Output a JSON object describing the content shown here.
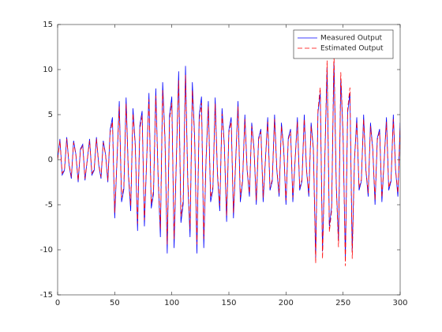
{
  "chart_data": {
    "type": "line",
    "x": [
      0,
      2,
      4,
      6,
      8,
      10,
      12,
      14,
      16,
      18,
      20,
      22,
      24,
      26,
      28,
      30,
      32,
      34,
      36,
      38,
      40,
      42,
      44,
      46,
      48,
      50,
      52,
      54,
      56,
      58,
      60,
      62,
      64,
      66,
      68,
      70,
      72,
      74,
      76,
      78,
      80,
      82,
      84,
      86,
      88,
      90,
      92,
      94,
      96,
      98,
      100,
      102,
      104,
      106,
      108,
      110,
      112,
      114,
      116,
      118,
      120,
      122,
      124,
      126,
      128,
      130,
      132,
      134,
      136,
      138,
      140,
      142,
      144,
      146,
      148,
      150,
      152,
      154,
      156,
      158,
      160,
      162,
      164,
      166,
      168,
      170,
      172,
      174,
      176,
      178,
      180,
      182,
      184,
      186,
      188,
      190,
      192,
      194,
      196,
      198,
      200,
      202,
      204,
      206,
      208,
      210,
      212,
      214,
      216,
      218,
      220,
      222,
      224,
      226,
      228,
      230,
      232,
      234,
      236,
      238,
      240,
      242,
      244,
      246,
      248,
      250,
      252,
      254,
      256,
      258,
      260,
      262,
      264,
      266,
      268,
      270,
      272,
      274,
      276,
      278,
      280,
      282,
      284,
      286,
      288,
      290,
      292,
      294,
      296,
      298,
      300
    ],
    "series": [
      {
        "name": "Measured Output",
        "color": "#0000ff",
        "dash": false,
        "values": [
          0,
          2.3,
          -1.7,
          -1.2,
          2.5,
          -0.6,
          -2.1,
          2.1,
          0.6,
          -2.5,
          1.2,
          1.7,
          -2.3,
          0,
          2.3,
          -1.7,
          -1.2,
          2.5,
          -0.6,
          -2.1,
          2.1,
          0.6,
          -2.5,
          3.3,
          4.7,
          -6.5,
          0,
          6.5,
          -4.7,
          -3.3,
          6.9,
          -1.7,
          -5.7,
          5.7,
          1.7,
          -7.9,
          3.8,
          5.4,
          -7.4,
          0,
          7.4,
          -5.4,
          -3.8,
          7.9,
          -1.9,
          -8.6,
          8.6,
          2.5,
          -10.4,
          4.9,
          7,
          -9.8,
          0,
          9.8,
          -7,
          -4.9,
          10.4,
          -2.5,
          -8.6,
          8.6,
          2.5,
          -10.4,
          4.9,
          7,
          -9.8,
          0,
          6.5,
          -4.7,
          -3.3,
          6.9,
          -1.7,
          -5.7,
          5.7,
          1.7,
          -6.9,
          3.3,
          4.7,
          -6.5,
          0,
          6.5,
          -4.7,
          -2.4,
          5,
          -1.2,
          -4.1,
          4.1,
          1.2,
          -5,
          2.4,
          3.4,
          -4.7,
          0,
          4.7,
          -3.4,
          -2.4,
          5,
          -1.2,
          -4.1,
          4.1,
          1.2,
          -5,
          2.4,
          3.4,
          -4.7,
          0,
          4.7,
          -3.4,
          -2.4,
          5,
          -1.2,
          -4.1,
          4.1,
          1.2,
          -10.9,
          5.2,
          7.4,
          -10.2,
          0,
          10.2,
          -7.4,
          -5.2,
          10.9,
          -2.6,
          -9,
          9,
          2.6,
          -10.9,
          5.2,
          7.4,
          -10.2,
          0,
          4.7,
          -3.4,
          -2.4,
          5,
          -1.2,
          -4.1,
          4.1,
          1.2,
          -5,
          2.4,
          3.4,
          -4.7,
          0,
          4.7,
          -3.4,
          -2.4,
          5,
          -1.2,
          -4.1,
          4.1
        ]
      },
      {
        "name": "Estimated Output",
        "color": "#ff0000",
        "dash": true,
        "values": [
          0,
          2.1,
          -1.5,
          -1.1,
          2.3,
          -0.5,
          -1.9,
          1.9,
          0.5,
          -2.3,
          1.1,
          1.5,
          -2.1,
          0,
          2.1,
          -1.5,
          -1.1,
          2.3,
          -0.5,
          -1.9,
          1.9,
          0.5,
          -2.3,
          3,
          4.2,
          -5.9,
          0,
          5.9,
          -4.2,
          -3,
          6.2,
          -1.5,
          -5.1,
          5.1,
          1.5,
          -7.1,
          3.4,
          4.9,
          -6.7,
          0,
          6.7,
          -4.9,
          -3.4,
          7.1,
          -1.7,
          -7.7,
          7.7,
          2.3,
          -9.4,
          4.4,
          6.3,
          -8.8,
          0,
          8.8,
          -6.3,
          -4.4,
          9.4,
          -2.3,
          -7.7,
          7.7,
          2.3,
          -9.4,
          4.4,
          6.3,
          -8.8,
          0,
          5.9,
          -4.2,
          -3,
          6.2,
          -1.5,
          -5.1,
          5.1,
          1.5,
          -6.2,
          3,
          4.2,
          -5.9,
          0,
          5.9,
          -4.2,
          -2.2,
          4.5,
          -1.1,
          -3.7,
          3.7,
          1.1,
          -4.5,
          2.2,
          3.1,
          -4.2,
          0,
          4.2,
          -3.1,
          -2.2,
          4.5,
          -1.1,
          -3.7,
          3.7,
          1.1,
          -4.5,
          2.2,
          3.1,
          -4.2,
          0,
          4.2,
          -3.1,
          -2.2,
          4.5,
          -1.1,
          -3.7,
          3.7,
          1.1,
          -11.5,
          5.5,
          8,
          -11,
          0,
          11,
          -8,
          -5.6,
          12,
          -2.8,
          -9.7,
          9.7,
          2.8,
          -11.8,
          5.6,
          8,
          -11,
          0,
          4.2,
          -3.1,
          -2.2,
          4.5,
          -1.1,
          -3.7,
          3.7,
          1.1,
          -4.5,
          2.2,
          3.1,
          -4.2,
          0,
          4.2,
          -3.1,
          -2.2,
          4.5,
          -1.1,
          -3.7,
          3.7
        ]
      }
    ],
    "xlim": [
      0,
      300
    ],
    "xticks": [
      0,
      50,
      100,
      150,
      200,
      250,
      300
    ],
    "ylim": [
      -15,
      15
    ],
    "yticks": [
      -15,
      -10,
      -5,
      0,
      5,
      10,
      15
    ],
    "grid": false,
    "legend": "top-right"
  }
}
